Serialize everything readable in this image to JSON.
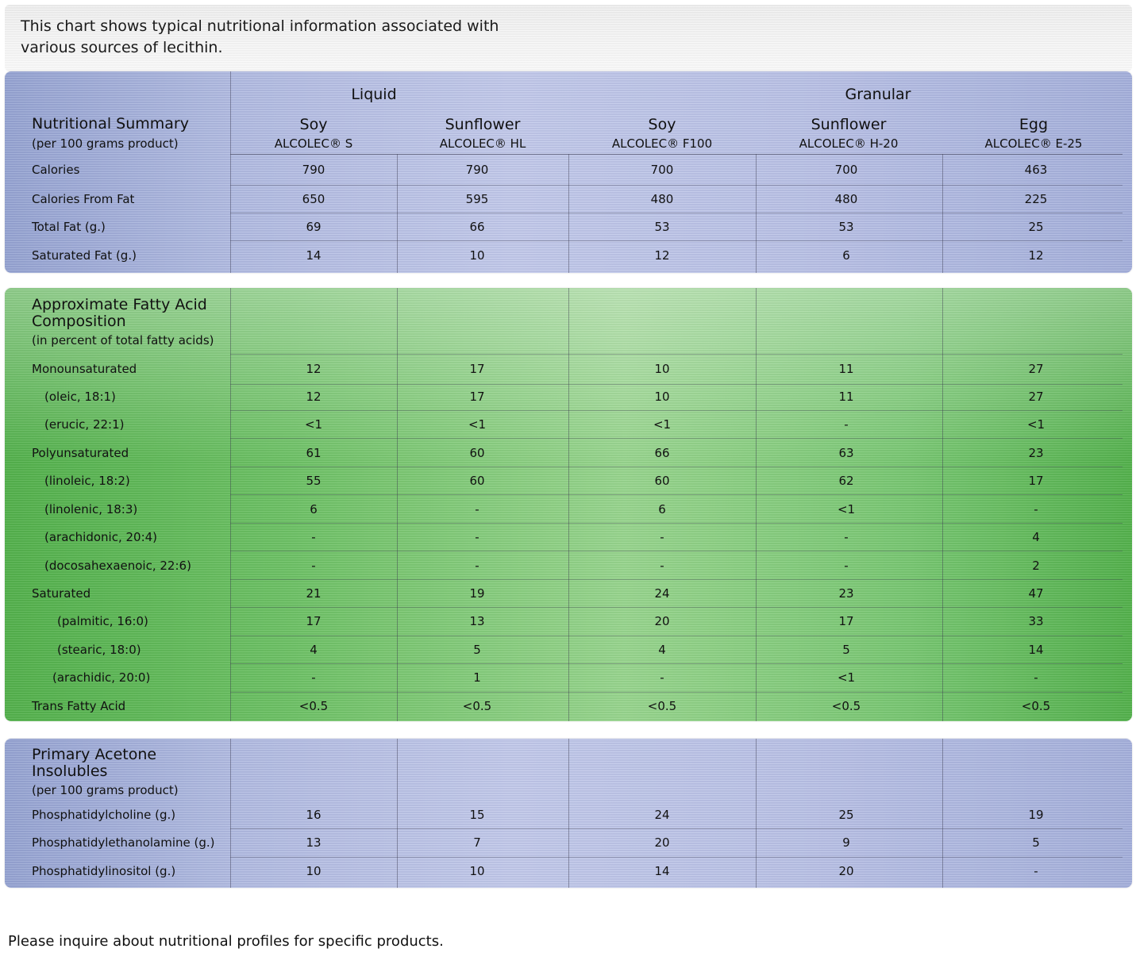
{
  "intro": "This chart shows typical nutritional information associated with various sources of lecithin.",
  "groups": {
    "liquid": "Liquid",
    "granular": "Granular"
  },
  "columns": [
    {
      "source": "Soy",
      "product": "ALCOLEC® S"
    },
    {
      "source": "Sunflower",
      "product": "ALCOLEC® HL"
    },
    {
      "source": "Soy",
      "product": "ALCOLEC® F100"
    },
    {
      "source": "Sunflower",
      "product": "ALCOLEC® H-20"
    },
    {
      "source": "Egg",
      "product": "ALCOLEC® E-25"
    }
  ],
  "nutritional_summary": {
    "title": "Nutritional Summary",
    "subtitle": "(per 100 grams product)",
    "rows": [
      {
        "label": "Calories",
        "values": [
          "790",
          "790",
          "700",
          "700",
          "463"
        ]
      },
      {
        "label": "Calories From Fat",
        "values": [
          "650",
          "595",
          "480",
          "480",
          "225"
        ]
      },
      {
        "label": "Total Fat (g.)",
        "values": [
          "69",
          "66",
          "53",
          "53",
          "25"
        ]
      },
      {
        "label": "Saturated Fat (g.)",
        "values": [
          "14",
          "10",
          "12",
          "6",
          "12"
        ]
      }
    ]
  },
  "fatty_acid": {
    "title_line1": "Approximate Fatty Acid",
    "title_line2": "Composition",
    "subtitle": "(in percent of total fatty acids)",
    "rows": [
      {
        "label": "Monounsaturated",
        "values": [
          "12",
          "17",
          "10",
          "11",
          "27"
        ]
      },
      {
        "label": "(oleic, 18:1)",
        "values": [
          "12",
          "17",
          "10",
          "11",
          "27"
        ]
      },
      {
        "label": "(erucic, 22:1)",
        "values": [
          "<1",
          "<1",
          "<1",
          "-",
          "<1"
        ]
      },
      {
        "label": "Polyunsaturated",
        "values": [
          "61",
          "60",
          "66",
          "63",
          "23"
        ]
      },
      {
        "label": "(linoleic, 18:2)",
        "values": [
          "55",
          "60",
          "60",
          "62",
          "17"
        ]
      },
      {
        "label": "(linolenic, 18:3)",
        "values": [
          "6",
          "-",
          "6",
          "<1",
          "-"
        ]
      },
      {
        "label": "(arachidonic, 20:4)",
        "values": [
          "-",
          "-",
          "-",
          "-",
          "4"
        ]
      },
      {
        "label": "(docosahexaenoic, 22:6)",
        "values": [
          "-",
          "-",
          "-",
          "-",
          "2"
        ]
      },
      {
        "label": "Saturated",
        "values": [
          "21",
          "19",
          "24",
          "23",
          "47"
        ]
      },
      {
        "label": "(palmitic, 16:0)",
        "values": [
          "17",
          "13",
          "20",
          "17",
          "33"
        ]
      },
      {
        "label": "(stearic, 18:0)",
        "values": [
          "4",
          "5",
          "4",
          "5",
          "14"
        ]
      },
      {
        "label": "(arachidic, 20:0)",
        "values": [
          "-",
          "1",
          "-",
          "<1",
          "-"
        ]
      },
      {
        "label": "Trans Fatty Acid",
        "values": [
          "<0.5",
          "<0.5",
          "<0.5",
          "<0.5",
          "<0.5"
        ]
      }
    ]
  },
  "acetone_insolubles": {
    "title_line1": "Primary Acetone",
    "title_line2": "Insolubles",
    "subtitle": "(per 100 grams product)",
    "rows": [
      {
        "label": "Phosphatidylcholine (g.)",
        "values": [
          "16",
          "15",
          "24",
          "25",
          "19"
        ]
      },
      {
        "label": "Phosphatidylethanolamine (g.)",
        "values": [
          "13",
          "7",
          "20",
          "9",
          "5"
        ]
      },
      {
        "label": "Phosphatidylinositol (g.)",
        "values": [
          "10",
          "10",
          "14",
          "20",
          "-"
        ]
      }
    ]
  },
  "footer": "Please inquire about nutritional profiles for specific products."
}
